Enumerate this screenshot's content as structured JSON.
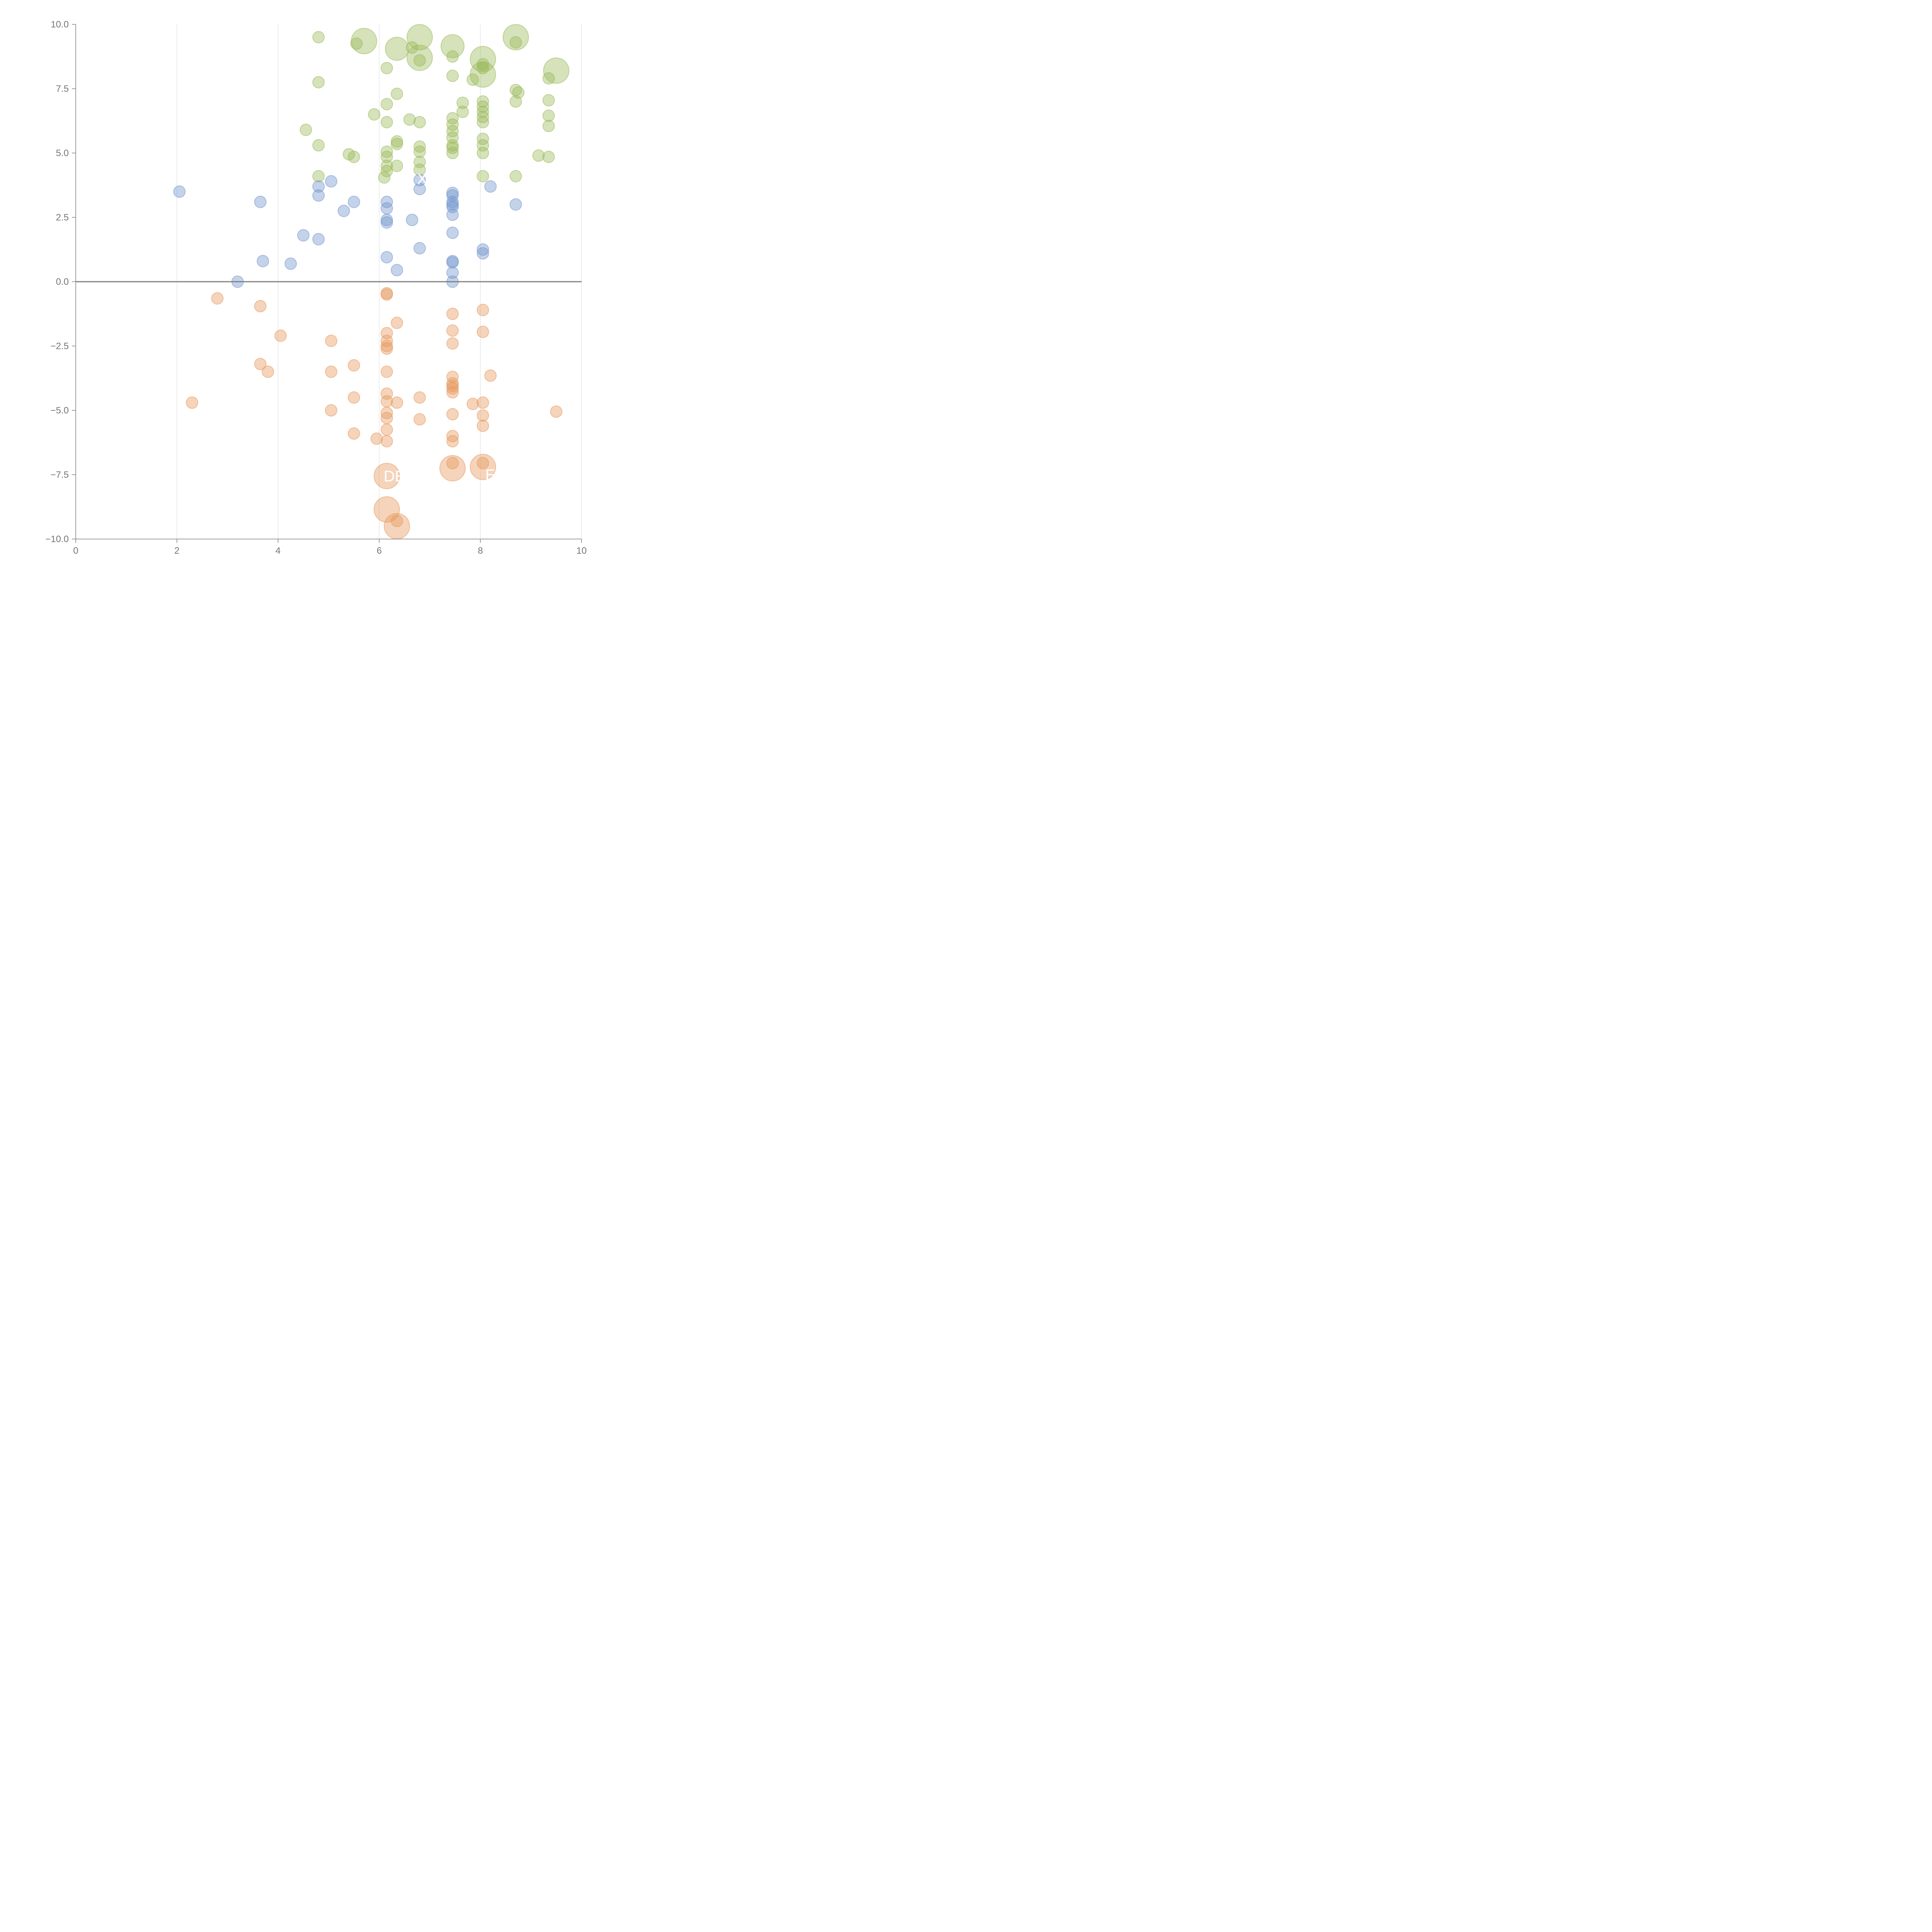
{
  "chart_data": {
    "type": "scatter",
    "title": "",
    "xlabel": "",
    "ylabel": "",
    "xlim": [
      0,
      10
    ],
    "ylim": [
      -10,
      10
    ],
    "x_ticks": [
      "0",
      "2",
      "4",
      "6",
      "8",
      "10"
    ],
    "y_ticks": [
      "−10.0",
      "−7.5",
      "−5.0",
      "−2.5",
      "0.0",
      "2.5",
      "5.0",
      "7.5",
      "10.0"
    ],
    "grid": "vertical lines only",
    "legend": "none",
    "zero_line": true,
    "series": [
      {
        "color": "#9ab95a",
        "points": [
          [
            4.8,
            9.5,
            1
          ],
          [
            5.7,
            9.35,
            2.2
          ],
          [
            5.55,
            9.25,
            1
          ],
          [
            6.35,
            9.05,
            2
          ],
          [
            6.8,
            9.5,
            2.2
          ],
          [
            6.65,
            9.1,
            1
          ],
          [
            6.8,
            8.7,
            2.2
          ],
          [
            6.8,
            8.6,
            1
          ],
          [
            7.45,
            9.15,
            2
          ],
          [
            7.45,
            8.75,
            1
          ],
          [
            8.7,
            9.5,
            2.2
          ],
          [
            8.7,
            9.3,
            1
          ],
          [
            8.05,
            8.65,
            2.2
          ],
          [
            8.05,
            8.45,
            1
          ],
          [
            8.05,
            8.05,
            2.2
          ],
          [
            8.05,
            8.3,
            1
          ],
          [
            9.5,
            8.2,
            2.2
          ],
          [
            9.35,
            7.9,
            1
          ],
          [
            6.15,
            8.3,
            1
          ],
          [
            4.8,
            7.75,
            1
          ],
          [
            7.45,
            8.0,
            1
          ],
          [
            7.85,
            7.85,
            1
          ],
          [
            6.35,
            7.3,
            1
          ],
          [
            8.7,
            7.45,
            1
          ],
          [
            8.75,
            7.35,
            1
          ],
          [
            8.7,
            7.0,
            1
          ],
          [
            9.35,
            7.05,
            1
          ],
          [
            7.65,
            6.95,
            1
          ],
          [
            7.65,
            6.6,
            1
          ],
          [
            6.15,
            6.9,
            1
          ],
          [
            5.9,
            6.5,
            1
          ],
          [
            6.6,
            6.3,
            1
          ],
          [
            6.15,
            6.2,
            1
          ],
          [
            6.8,
            6.2,
            1
          ],
          [
            4.55,
            5.9,
            1
          ],
          [
            9.35,
            6.45,
            1
          ],
          [
            9.35,
            6.05,
            1
          ],
          [
            7.45,
            6.35,
            1
          ],
          [
            7.45,
            6.1,
            1
          ],
          [
            7.45,
            5.85,
            1
          ],
          [
            7.45,
            5.6,
            1
          ],
          [
            7.45,
            5.3,
            1
          ],
          [
            7.45,
            5.0,
            1
          ],
          [
            7.45,
            5.2,
            1
          ],
          [
            8.05,
            7.0,
            1
          ],
          [
            8.05,
            6.8,
            1
          ],
          [
            8.05,
            6.6,
            1
          ],
          [
            8.05,
            6.4,
            1
          ],
          [
            8.05,
            6.2,
            1
          ],
          [
            8.05,
            5.55,
            1
          ],
          [
            8.05,
            5.3,
            1
          ],
          [
            8.05,
            5.0,
            1
          ],
          [
            8.05,
            4.1,
            1
          ],
          [
            4.8,
            5.3,
            1
          ],
          [
            6.35,
            5.45,
            1
          ],
          [
            6.35,
            5.35,
            1
          ],
          [
            6.8,
            5.25,
            1
          ],
          [
            6.8,
            5.05,
            1
          ],
          [
            6.8,
            4.65,
            1
          ],
          [
            6.8,
            4.35,
            1
          ],
          [
            6.15,
            5.05,
            1
          ],
          [
            6.15,
            4.85,
            1
          ],
          [
            6.15,
            4.5,
            1
          ],
          [
            6.15,
            4.3,
            1
          ],
          [
            6.1,
            4.05,
            1
          ],
          [
            6.35,
            4.5,
            1
          ],
          [
            5.4,
            4.95,
            1
          ],
          [
            5.5,
            4.85,
            1
          ],
          [
            4.8,
            4.1,
            1
          ],
          [
            8.7,
            4.1,
            1
          ],
          [
            9.15,
            4.9,
            1
          ],
          [
            9.35,
            4.85,
            1
          ]
        ]
      },
      {
        "color": "#7396cc",
        "points": [
          [
            2.05,
            3.5,
            1
          ],
          [
            3.65,
            3.1,
            1
          ],
          [
            3.7,
            0.8,
            1
          ],
          [
            3.2,
            0.0,
            1
          ],
          [
            4.25,
            0.7,
            1
          ],
          [
            4.5,
            1.8,
            1
          ],
          [
            4.8,
            3.7,
            1
          ],
          [
            4.8,
            3.35,
            1
          ],
          [
            4.8,
            1.65,
            1
          ],
          [
            5.05,
            3.9,
            1
          ],
          [
            5.3,
            2.75,
            1
          ],
          [
            5.5,
            3.1,
            1
          ],
          [
            6.15,
            3.1,
            1
          ],
          [
            6.15,
            2.85,
            1
          ],
          [
            6.15,
            2.4,
            1
          ],
          [
            6.15,
            2.3,
            1
          ],
          [
            6.15,
            0.95,
            1
          ],
          [
            6.35,
            0.45,
            1
          ],
          [
            6.65,
            2.4,
            1
          ],
          [
            6.8,
            3.95,
            1
          ],
          [
            6.8,
            3.6,
            1
          ],
          [
            6.8,
            1.3,
            1
          ],
          [
            7.45,
            3.45,
            1
          ],
          [
            7.45,
            3.35,
            1
          ],
          [
            7.45,
            3.1,
            1
          ],
          [
            7.45,
            3.0,
            1
          ],
          [
            7.45,
            2.9,
            1
          ],
          [
            7.45,
            2.6,
            1
          ],
          [
            7.45,
            1.9,
            1
          ],
          [
            7.45,
            0.8,
            1
          ],
          [
            7.45,
            0.75,
            1
          ],
          [
            7.45,
            0.35,
            1
          ],
          [
            7.45,
            0.0,
            1
          ],
          [
            8.05,
            1.25,
            1
          ],
          [
            8.05,
            1.1,
            1
          ],
          [
            8.2,
            3.7,
            1
          ],
          [
            8.7,
            3.0,
            1
          ]
        ]
      },
      {
        "color": "#e6995c",
        "points": [
          [
            2.8,
            -0.65,
            1
          ],
          [
            3.65,
            -0.95,
            1
          ],
          [
            4.05,
            -2.1,
            1
          ],
          [
            5.05,
            -2.3,
            1
          ],
          [
            3.65,
            -3.2,
            1
          ],
          [
            3.8,
            -3.5,
            1
          ],
          [
            5.5,
            -3.25,
            1
          ],
          [
            5.05,
            -3.5,
            1
          ],
          [
            2.3,
            -4.7,
            1
          ],
          [
            5.5,
            -4.5,
            1
          ],
          [
            5.05,
            -5.0,
            1
          ],
          [
            5.5,
            -5.9,
            1
          ],
          [
            5.95,
            -6.1,
            1
          ],
          [
            6.15,
            -0.45,
            1
          ],
          [
            6.15,
            -0.5,
            1
          ],
          [
            6.35,
            -1.6,
            1
          ],
          [
            6.15,
            -2.0,
            1
          ],
          [
            6.15,
            -2.3,
            1
          ],
          [
            6.15,
            -2.5,
            1
          ],
          [
            6.15,
            -2.6,
            1
          ],
          [
            6.15,
            -3.5,
            1
          ],
          [
            6.15,
            -4.35,
            1
          ],
          [
            6.15,
            -4.65,
            1
          ],
          [
            6.35,
            -4.7,
            1
          ],
          [
            6.15,
            -5.1,
            1
          ],
          [
            6.15,
            -5.3,
            1
          ],
          [
            6.15,
            -5.75,
            1
          ],
          [
            6.15,
            -6.2,
            1
          ],
          [
            6.8,
            -4.5,
            1
          ],
          [
            6.8,
            -5.35,
            1
          ],
          [
            7.45,
            -1.25,
            1
          ],
          [
            7.45,
            -1.9,
            1
          ],
          [
            7.45,
            -2.4,
            1
          ],
          [
            7.45,
            -3.7,
            1
          ],
          [
            7.45,
            -3.95,
            1
          ],
          [
            7.45,
            -4.05,
            1
          ],
          [
            7.45,
            -4.15,
            1
          ],
          [
            7.45,
            -4.3,
            1
          ],
          [
            7.45,
            -5.15,
            1
          ],
          [
            7.45,
            -6.0,
            1
          ],
          [
            7.45,
            -6.2,
            1
          ],
          [
            7.45,
            -7.05,
            1
          ],
          [
            7.45,
            -7.25,
            2.2
          ],
          [
            6.15,
            -7.55,
            2.2
          ],
          [
            6.15,
            -8.85,
            2.2
          ],
          [
            6.35,
            -9.5,
            2.2
          ],
          [
            6.35,
            -9.3,
            1
          ],
          [
            8.05,
            -1.1,
            1
          ],
          [
            8.05,
            -1.95,
            1
          ],
          [
            8.2,
            -3.65,
            1
          ],
          [
            8.05,
            -4.7,
            1
          ],
          [
            8.05,
            -5.2,
            1
          ],
          [
            8.05,
            -5.6,
            1
          ],
          [
            7.85,
            -4.75,
            1
          ],
          [
            8.05,
            -7.05,
            1
          ],
          [
            8.05,
            -7.2,
            2.2
          ],
          [
            9.5,
            -5.05,
            1
          ]
        ]
      }
    ],
    "annotations": [
      {
        "text": "X",
        "x": 6.85,
        "y": 4.0
      },
      {
        "text": "DE",
        "x": 6.3,
        "y": -7.55
      },
      {
        "text": "E",
        "x": 8.2,
        "y": -7.5
      }
    ]
  }
}
